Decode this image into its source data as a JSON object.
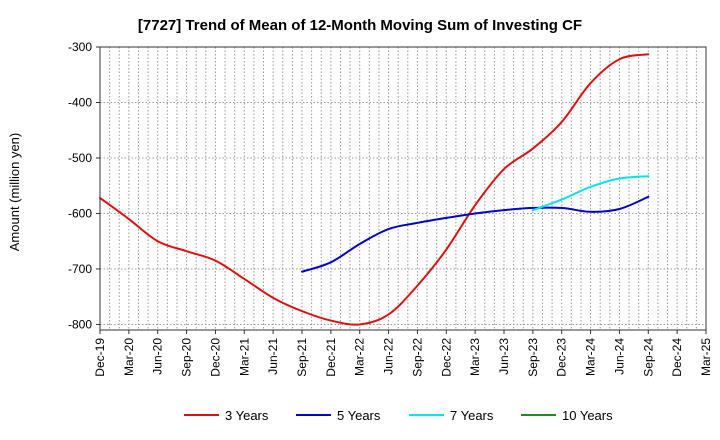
{
  "chart_data": {
    "type": "line",
    "title": "[7727]  Trend of Mean of 12-Month Moving Sum of Investing CF",
    "xlabel": "",
    "ylabel": "Amount (million yen)",
    "ylim": [
      -810,
      -300
    ],
    "yticks": [
      -300,
      -400,
      -500,
      -600,
      -700,
      -800
    ],
    "categories": [
      "Dec-19",
      "Mar-20",
      "Jun-20",
      "Sep-20",
      "Dec-20",
      "Mar-21",
      "Jun-21",
      "Sep-21",
      "Dec-21",
      "Mar-22",
      "Jun-22",
      "Sep-22",
      "Dec-22",
      "Mar-23",
      "Jun-23",
      "Sep-23",
      "Dec-23",
      "Mar-24",
      "Jun-24",
      "Sep-24",
      "Dec-24",
      "Mar-25"
    ],
    "grid": true,
    "legend_position": "bottom",
    "series": [
      {
        "name": "3 Years",
        "color": "#dd1111",
        "values": [
          -572,
          -610,
          -650,
          -668,
          -685,
          -718,
          -752,
          -776,
          -793,
          -800,
          -782,
          -730,
          -665,
          -585,
          -520,
          -483,
          -435,
          -365,
          -322,
          -313,
          null,
          null
        ]
      },
      {
        "name": "5 Years",
        "color": "#0000cc",
        "values": [
          null,
          null,
          null,
          null,
          null,
          null,
          null,
          -705,
          -688,
          -655,
          -628,
          -617,
          -608,
          -600,
          -594,
          -590,
          -590,
          -597,
          -592,
          -570,
          null,
          null
        ]
      },
      {
        "name": "7 Years",
        "color": "#00e5ee",
        "values": [
          null,
          null,
          null,
          null,
          null,
          null,
          null,
          null,
          null,
          null,
          null,
          null,
          null,
          null,
          null,
          -594,
          -575,
          -552,
          -537,
          -533,
          null,
          null
        ]
      },
      {
        "name": "10 Years",
        "color": "#228822",
        "values": [
          null,
          null,
          null,
          null,
          null,
          null,
          null,
          null,
          null,
          null,
          null,
          null,
          null,
          null,
          null,
          null,
          null,
          null,
          null,
          null,
          null,
          null
        ]
      }
    ]
  }
}
